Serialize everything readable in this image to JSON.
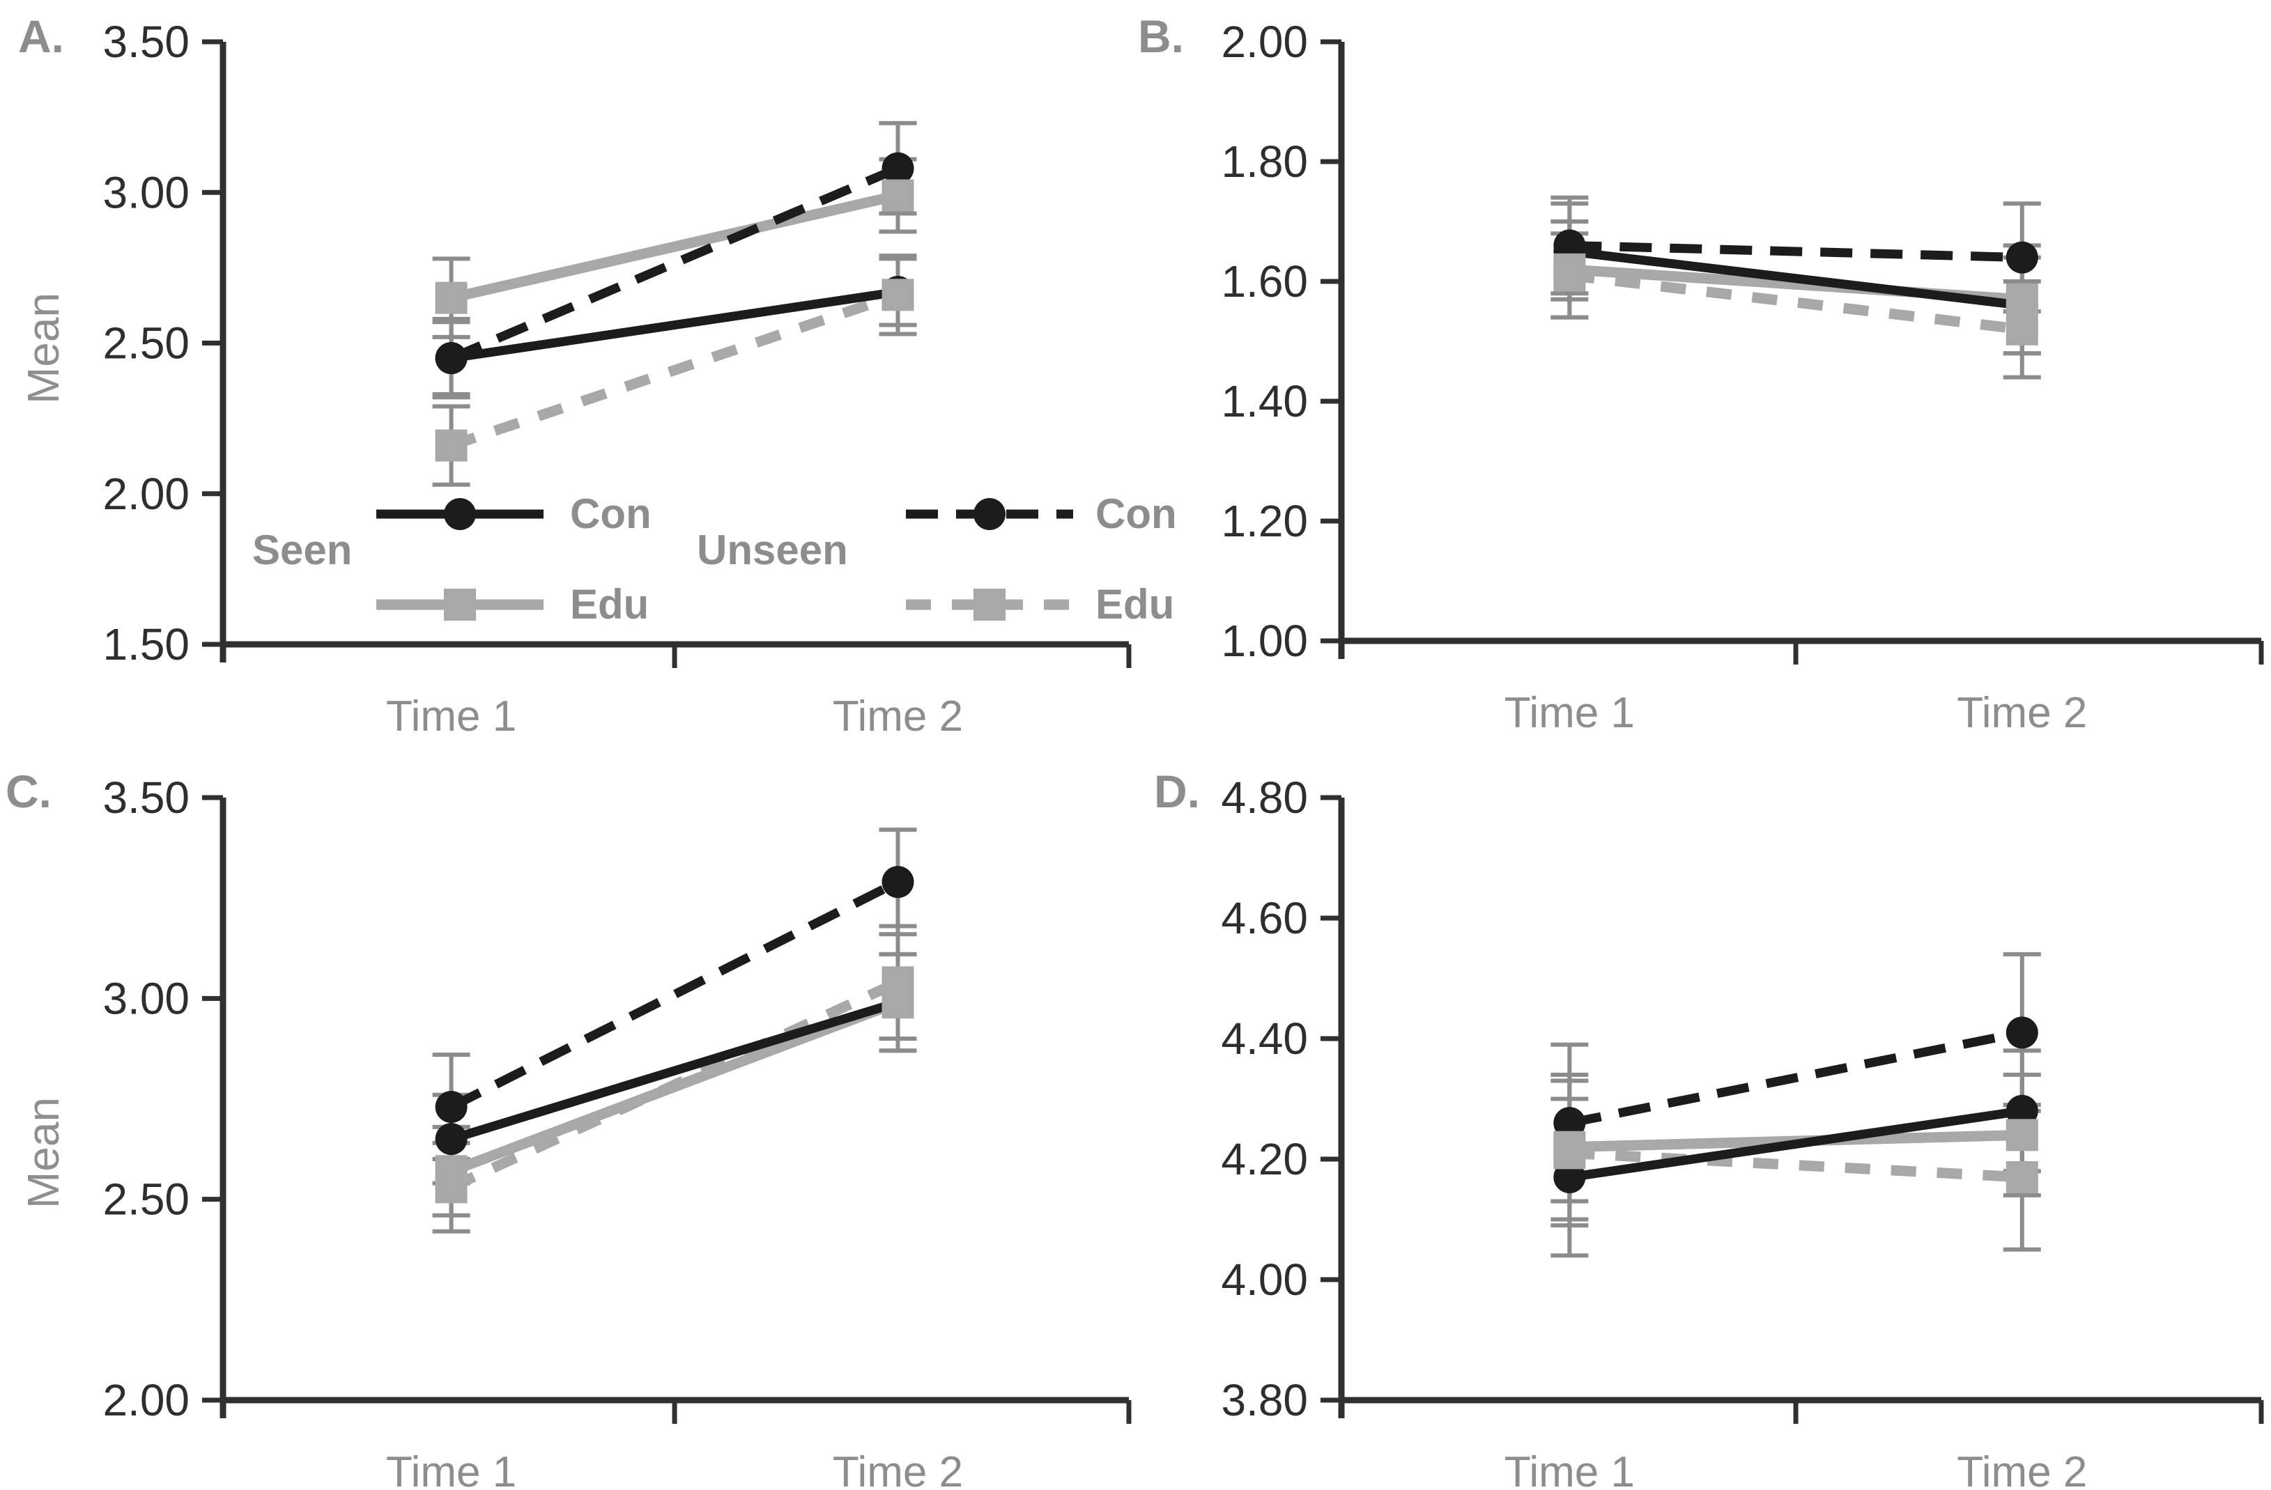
{
  "figure": {
    "colors": {
      "background": "#ffffff",
      "black_series": "#1c1c1c",
      "gray_series": "#a8a8a8",
      "error_bar": "#8c8c8c",
      "axis": "#303030",
      "tick_text": "#2e2e2e",
      "gray_text": "#8d8d8d"
    },
    "legend": {
      "seen": "Seen",
      "unseen": "Unseen",
      "con": "Con",
      "edu": "Edu"
    }
  },
  "chart_data": [
    {
      "id": "A",
      "type": "line",
      "panel_label": "A.",
      "ylabel": "Mean",
      "ylim": [
        1.5,
        3.5
      ],
      "yticks": [
        3.5,
        3.0,
        2.5,
        2.0,
        1.5
      ],
      "tick_decimals": 2,
      "grid": false,
      "categories": [
        "Time 1",
        "Time 2"
      ],
      "has_legend": true,
      "legend_position": "inside-bottom-left",
      "series": [
        {
          "name": "Con Seen",
          "group": "Seen",
          "treatment": "Con",
          "marker": "circle",
          "color": "black",
          "dash": false,
          "values": [
            2.45,
            2.67
          ],
          "err": [
            0.12,
            0.11
          ]
        },
        {
          "name": "Edu Seen",
          "group": "Seen",
          "treatment": "Edu",
          "marker": "square",
          "color": "gray",
          "dash": false,
          "values": [
            2.65,
            2.99
          ],
          "err": [
            0.13,
            0.12
          ]
        },
        {
          "name": "Con Unseen",
          "group": "Unseen",
          "treatment": "Con",
          "marker": "circle",
          "color": "black",
          "dash": true,
          "values": [
            2.45,
            3.08
          ],
          "err": [
            0.13,
            0.15
          ]
        },
        {
          "name": "Edu Unseen",
          "group": "Unseen",
          "treatment": "Edu",
          "marker": "square",
          "color": "gray",
          "dash": true,
          "values": [
            2.16,
            2.66
          ],
          "err": [
            0.13,
            0.13
          ]
        }
      ]
    },
    {
      "id": "B",
      "type": "line",
      "panel_label": "B.",
      "ylabel": "",
      "ylim": [
        1.0,
        2.0
      ],
      "yticks": [
        2.0,
        1.8,
        1.6,
        1.4,
        1.2,
        1.0
      ],
      "tick_decimals": 2,
      "grid": false,
      "categories": [
        "Time 1",
        "Time 2"
      ],
      "has_legend": false,
      "series": [
        {
          "name": "Con Seen",
          "group": "Seen",
          "treatment": "Con",
          "marker": "circle",
          "color": "black",
          "dash": false,
          "values": [
            1.65,
            1.56
          ],
          "err": [
            0.08,
            0.08
          ]
        },
        {
          "name": "Edu Seen",
          "group": "Seen",
          "treatment": "Edu",
          "marker": "square",
          "color": "gray",
          "dash": false,
          "values": [
            1.62,
            1.57
          ],
          "err": [
            0.08,
            0.09
          ]
        },
        {
          "name": "Con Unseen",
          "group": "Unseen",
          "treatment": "Con",
          "marker": "circle",
          "color": "black",
          "dash": true,
          "values": [
            1.66,
            1.64
          ],
          "err": [
            0.08,
            0.09
          ]
        },
        {
          "name": "Edu Unseen",
          "group": "Unseen",
          "treatment": "Edu",
          "marker": "square",
          "color": "gray",
          "dash": true,
          "values": [
            1.61,
            1.52
          ],
          "err": [
            0.07,
            0.08
          ]
        }
      ]
    },
    {
      "id": "C",
      "type": "line",
      "panel_label": "C.",
      "ylabel": "Mean",
      "ylim": [
        2.0,
        3.5
      ],
      "yticks": [
        3.5,
        3.0,
        2.5,
        2.0
      ],
      "tick_decimals": 2,
      "grid": false,
      "categories": [
        "Time 1",
        "Time 2"
      ],
      "has_legend": false,
      "series": [
        {
          "name": "Con Seen",
          "group": "Seen",
          "treatment": "Con",
          "marker": "circle",
          "color": "black",
          "dash": false,
          "values": [
            2.65,
            2.99
          ],
          "err": [
            0.11,
            0.12
          ]
        },
        {
          "name": "Edu Seen",
          "group": "Seen",
          "treatment": "Edu",
          "marker": "square",
          "color": "gray",
          "dash": false,
          "values": [
            2.57,
            2.99
          ],
          "err": [
            0.11,
            0.12
          ]
        },
        {
          "name": "Con Unseen",
          "group": "Unseen",
          "treatment": "Con",
          "marker": "circle",
          "color": "black",
          "dash": true,
          "values": [
            2.73,
            3.29
          ],
          "err": [
            0.13,
            0.13
          ]
        },
        {
          "name": "Edu Unseen",
          "group": "Unseen",
          "treatment": "Edu",
          "marker": "square",
          "color": "gray",
          "dash": true,
          "values": [
            2.53,
            3.04
          ],
          "err": [
            0.11,
            0.14
          ]
        }
      ]
    },
    {
      "id": "D",
      "type": "line",
      "panel_label": "D.",
      "ylabel": "",
      "ylim": [
        3.8,
        4.8
      ],
      "yticks": [
        4.8,
        4.6,
        4.4,
        4.2,
        4.0,
        3.8
      ],
      "tick_decimals": 2,
      "grid": false,
      "categories": [
        "Time 1",
        "Time 2"
      ],
      "has_legend": false,
      "series": [
        {
          "name": "Con Seen",
          "group": "Seen",
          "treatment": "Con",
          "marker": "circle",
          "color": "black",
          "dash": false,
          "values": [
            4.17,
            4.28
          ],
          "err": [
            0.13,
            0.1
          ]
        },
        {
          "name": "Edu Seen",
          "group": "Seen",
          "treatment": "Edu",
          "marker": "square",
          "color": "gray",
          "dash": false,
          "values": [
            4.22,
            4.24
          ],
          "err": [
            0.12,
            0.1
          ]
        },
        {
          "name": "Con Unseen",
          "group": "Unseen",
          "treatment": "Con",
          "marker": "circle",
          "color": "black",
          "dash": true,
          "values": [
            4.26,
            4.41
          ],
          "err": [
            0.13,
            0.13
          ]
        },
        {
          "name": "Edu Unseen",
          "group": "Unseen",
          "treatment": "Edu",
          "marker": "square",
          "color": "gray",
          "dash": true,
          "values": [
            4.21,
            4.17
          ],
          "err": [
            0.12,
            0.12
          ]
        }
      ]
    }
  ]
}
